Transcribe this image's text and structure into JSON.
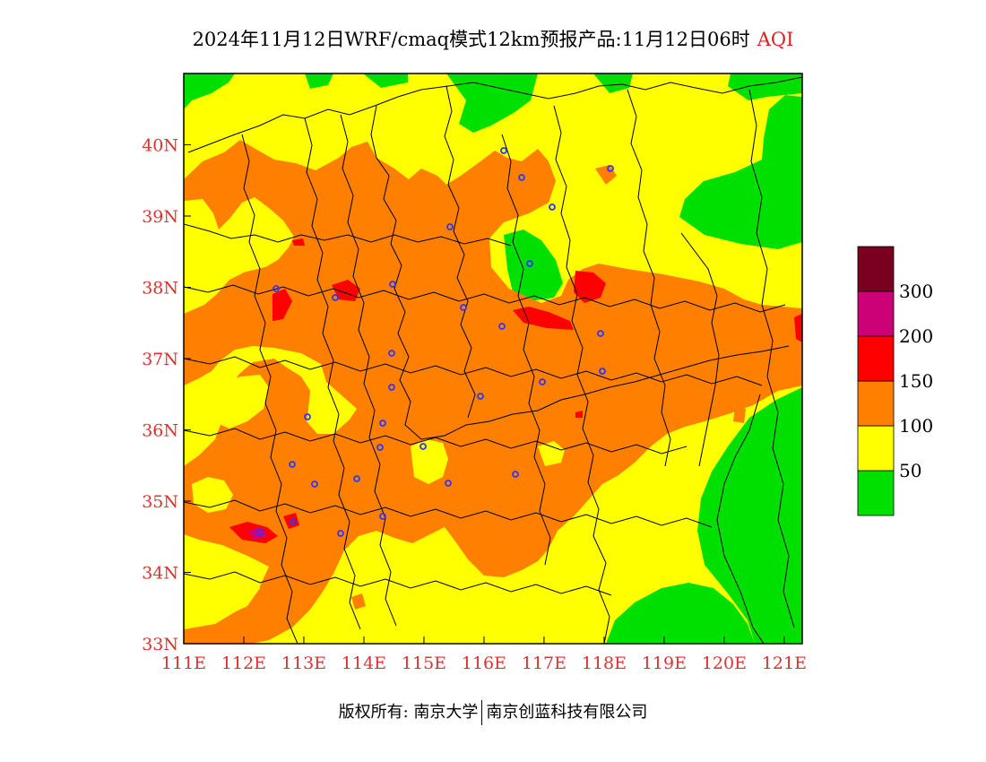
{
  "title": {
    "main": "2024年11月12日WRF/cmaq模式12km预报产品:11月12日06时",
    "variable": "AQI"
  },
  "axes": {
    "lat_ticks": [
      "33N",
      "34N",
      "35N",
      "36N",
      "37N",
      "38N",
      "39N",
      "40N"
    ],
    "lon_ticks": [
      "111E",
      "112E",
      "113E",
      "114E",
      "115E",
      "116E",
      "117E",
      "118E",
      "119E",
      "120E",
      "121E"
    ],
    "lat_range": [
      33,
      41
    ],
    "lon_range": [
      111,
      121.3
    ]
  },
  "legend": {
    "labels": [
      "50",
      "100",
      "150",
      "200",
      "300"
    ],
    "colors": [
      "#00e000",
      "#ffff00",
      "#ff7f00",
      "#ff0000",
      "#cc0077",
      "#7a0020"
    ]
  },
  "footer": {
    "left": "版权所有: 南京大学",
    "right": "南京创蓝科技有限公司"
  },
  "colors": {
    "good": "#00e000",
    "moderate": "#ffff00",
    "unhealthy_sensitive": "#ff7f00",
    "unhealthy": "#ff0000",
    "very_unhealthy": "#cc0077",
    "hazardous": "#7a0020",
    "station_marker": "#3333ff",
    "tick_label": "#e03030"
  },
  "station_count": 30
}
